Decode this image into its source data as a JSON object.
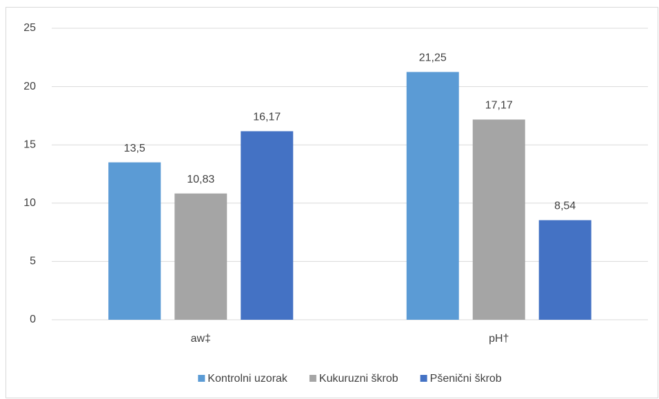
{
  "chart_data": {
    "type": "bar",
    "categories": [
      "aw‡",
      "pH†"
    ],
    "series": [
      {
        "name": "Kontrolni uzorak",
        "color": "#5b9bd5",
        "values": [
          13.5,
          21.25
        ],
        "value_labels": [
          "13,5",
          "21,25"
        ]
      },
      {
        "name": "Kukuruzni škrob",
        "color": "#a5a5a5",
        "values": [
          10.83,
          17.17
        ],
        "value_labels": [
          "10,83",
          "17,17"
        ]
      },
      {
        "name": "Pšenični škrob",
        "color": "#4472c4",
        "values": [
          16.17,
          8.54
        ],
        "value_labels": [
          "16,17",
          "8,54"
        ]
      }
    ],
    "ylim": [
      0,
      25
    ],
    "yticks": [
      0,
      5,
      10,
      15,
      20,
      25
    ],
    "grid": true,
    "legend": "bottom"
  }
}
